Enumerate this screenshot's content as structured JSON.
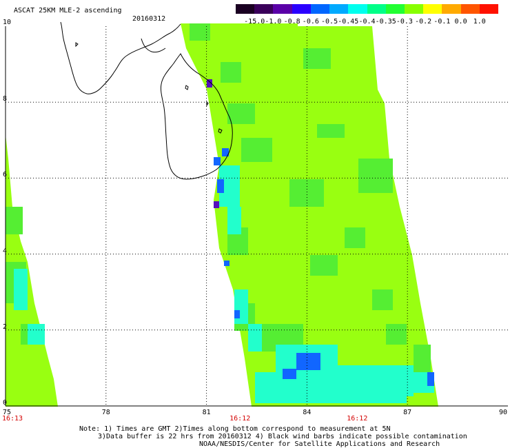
{
  "header": {
    "title": "ASCAT 25KM MLE-2 ascending",
    "date": "20160312"
  },
  "colorbar": {
    "labels": [
      "-15.0",
      "-1.0",
      "-0.8",
      "-0.6",
      "-0.5",
      "-0.45",
      "-0.4",
      "-0.35",
      "-0.3",
      "-0.2",
      "-0.1",
      "0.0",
      "1.0"
    ],
    "colors": [
      "#1a0022",
      "#3a005a",
      "#5a00a8",
      "#2a00ff",
      "#0066ff",
      "#00aaff",
      "#00ffee",
      "#00ff88",
      "#22ff33",
      "#88ff00",
      "#ffff00",
      "#ffaa00",
      "#ff5500",
      "#ff1100"
    ]
  },
  "axes": {
    "x_labels": [
      "75",
      "78",
      "81",
      "84",
      "87",
      "90"
    ],
    "y_labels": [
      "0",
      "2",
      "4",
      "6",
      "8",
      "10"
    ],
    "time_labels": [
      {
        "text": "16:13",
        "at": "75"
      },
      {
        "text": "16:12",
        "at": "82"
      },
      {
        "text": "16:12",
        "at": "85.5"
      }
    ]
  },
  "notes": {
    "line1": "Note: 1) Times are GMT 2)Times along bottom correspond to measurement at 5N",
    "line2": "3)Data buffer is 22 hrs from 20160312 4) Black wind barbs indicate possible contamination",
    "line3": "NOAA/NESDIS/Center for Satellite Applications and Research"
  },
  "colors": {
    "swath_base": "#99ff11",
    "swath_green": "#55ee33",
    "swath_cyan": "#22ffcc",
    "swath_blue": "#1166ff",
    "swath_purple": "#5511bb",
    "time_text": "#d40000",
    "grid": "#000000"
  }
}
